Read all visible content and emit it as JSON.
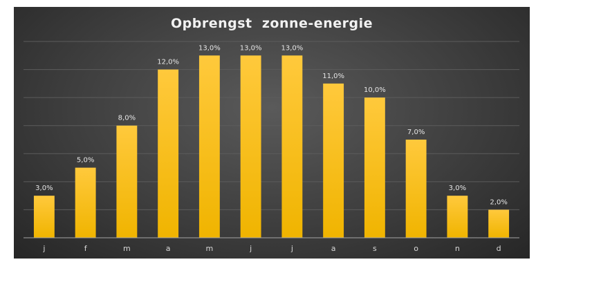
{
  "chart_data": {
    "type": "bar",
    "title": "Opbrengst  zonne-energie",
    "xlabel": "",
    "ylabel": "",
    "categories": [
      "j",
      "f",
      "m",
      "a",
      "m",
      "j",
      "j",
      "a",
      "s",
      "o",
      "n",
      "d"
    ],
    "values": [
      3.0,
      5.0,
      8.0,
      12.0,
      13.0,
      13.0,
      13.0,
      11.0,
      10.0,
      7.0,
      3.0,
      2.0
    ],
    "value_labels": [
      "3,0%",
      "5,0%",
      "8,0%",
      "12,0%",
      "13,0%",
      "13,0%",
      "13,0%",
      "11,0%",
      "10,0%",
      "7,0%",
      "3,0%",
      "2,0%"
    ],
    "ylim": [
      0,
      14
    ],
    "ygrid_step": 2,
    "grid": true,
    "legend": "none",
    "colors": {
      "bar_top": "#ffc93c",
      "bar_bottom": "#f0b400",
      "background": "#3e3e3e"
    }
  }
}
